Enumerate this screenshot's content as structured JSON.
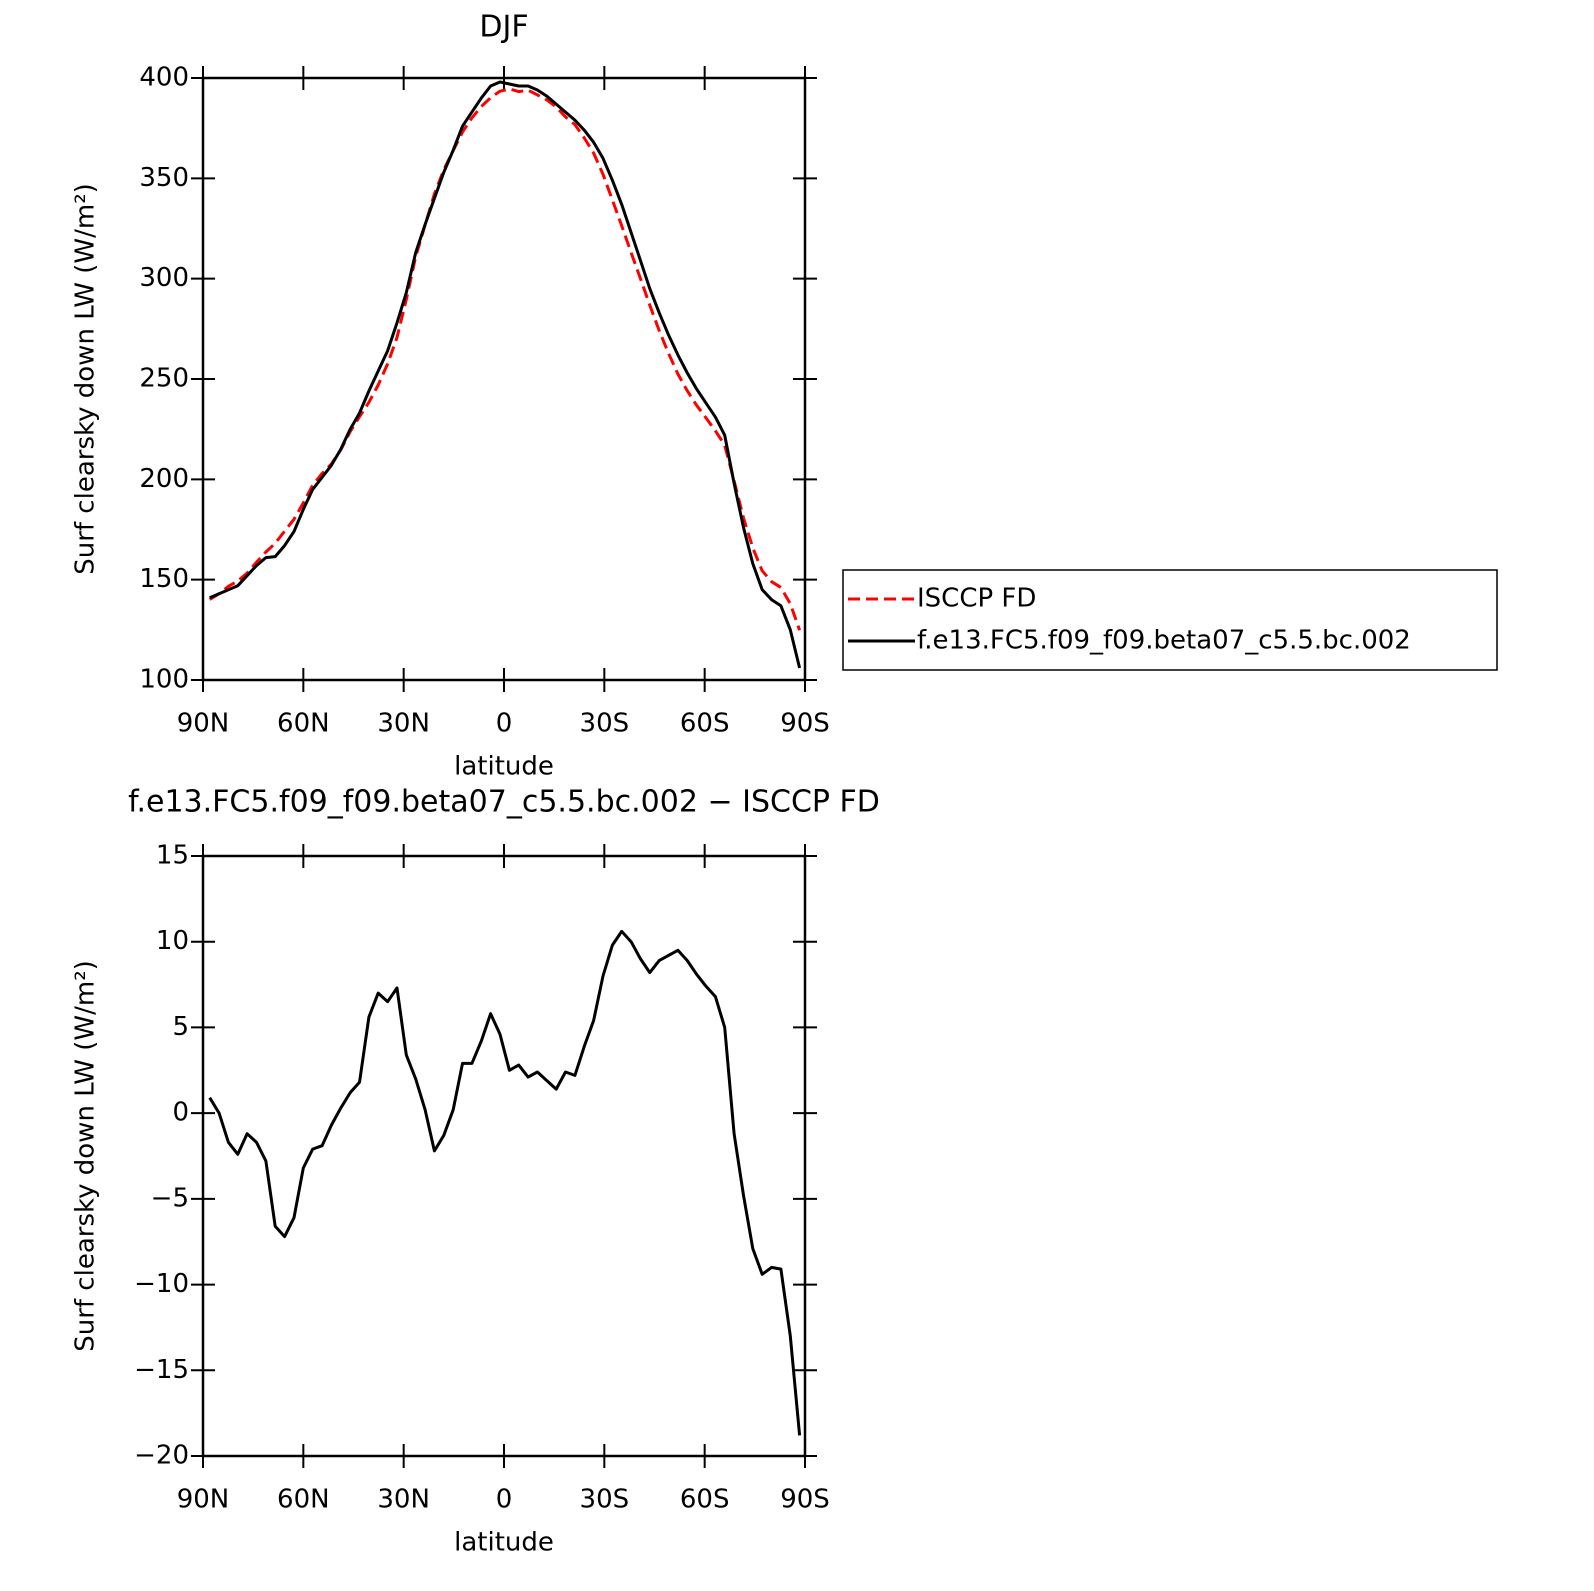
{
  "chart_data": [
    {
      "type": "line",
      "title": "DJF",
      "xlabel": "latitude",
      "ylabel": "Surf clearsky down LW (W/m²)",
      "x": [
        88,
        85.2,
        82.4,
        79.6,
        76.8,
        74,
        71.2,
        68.4,
        65.6,
        62.8,
        60,
        57.2,
        54.4,
        51.6,
        48.8,
        46,
        43.2,
        40.4,
        37.6,
        34.8,
        32,
        29.2,
        26.4,
        23.6,
        20.8,
        18,
        15.2,
        12.4,
        9.6,
        6.8,
        4,
        1.2,
        -1.6,
        -4.4,
        -7.2,
        -10,
        -12.8,
        -15.6,
        -18.4,
        -21.2,
        -24,
        -26.8,
        -29.6,
        -32.4,
        -35.2,
        -38,
        -40.8,
        -43.6,
        -46.4,
        -49.2,
        -52,
        -54.8,
        -57.6,
        -60.4,
        -63.2,
        -66,
        -68.8,
        -71.6,
        -74.4,
        -77.2,
        -80,
        -82.8,
        -85.6,
        -88.4
      ],
      "series": [
        {
          "name": "ISCCP FD",
          "color": "#ff0000",
          "dash": true,
          "values": [
            140.1,
            143,
            146.7,
            149.4,
            153.2,
            158.7,
            163.8,
            168.1,
            174.2,
            180.1,
            188.2,
            197.1,
            202.9,
            207.7,
            214.7,
            223.8,
            231.2,
            238.4,
            247,
            257.5,
            270.7,
            289.6,
            311,
            326.8,
            342.2,
            354.3,
            363.8,
            373.1,
            380.1,
            385.8,
            390.2,
            393.4,
            394.5,
            393.2,
            393.9,
            391.6,
            389.1,
            385.6,
            380.6,
            376.8,
            370.1,
            362.6,
            352,
            339.2,
            326.4,
            313,
            300,
            286.8,
            274.1,
            262.8,
            252.5,
            244.1,
            236.9,
            230.6,
            224.2,
            217,
            199.2,
            180.8,
            165.9,
            154.4,
            149,
            146.1,
            138,
            124.8
          ]
        },
        {
          "name": "f.e13.FC5.f09_f09.beta07_c5.5.bc.002",
          "color": "#000000",
          "dash": false,
          "values": [
            141,
            143,
            145,
            147,
            152,
            157,
            161,
            161.5,
            167,
            174,
            185,
            195,
            201,
            207,
            215,
            225,
            233,
            244,
            254,
            264,
            278,
            293,
            313,
            327,
            340,
            353,
            364,
            376,
            383,
            390,
            396,
            398,
            397,
            396,
            396,
            394,
            391,
            387,
            383,
            379,
            374,
            368,
            360,
            349,
            337,
            323,
            309,
            295,
            283,
            272,
            262,
            253,
            245,
            238,
            231,
            222,
            198,
            176,
            158,
            145,
            140,
            137,
            125,
            106
          ]
        }
      ],
      "xlim": [
        90,
        -90
      ],
      "xticks": [
        {
          "value": 90,
          "label": "90N"
        },
        {
          "value": 60,
          "label": "60N"
        },
        {
          "value": 30,
          "label": "30N"
        },
        0,
        {
          "value": -30,
          "label": "30S"
        },
        {
          "value": -60,
          "label": "60S"
        },
        {
          "value": -90,
          "label": "90S"
        }
      ],
      "ylim": [
        100,
        400
      ],
      "yticks": [
        100,
        150,
        200,
        250,
        300,
        350,
        400
      ],
      "legend": "right"
    },
    {
      "type": "line",
      "title": "f.e13.FC5.f09_f09.beta07_c5.5.bc.002 − ISCCP FD",
      "xlabel": "latitude",
      "ylabel": "Surf clearsky down LW (W/m²)",
      "x": [
        88,
        85.2,
        82.4,
        79.6,
        76.8,
        74,
        71.2,
        68.4,
        65.6,
        62.8,
        60,
        57.2,
        54.4,
        51.6,
        48.8,
        46,
        43.2,
        40.4,
        37.6,
        34.8,
        32,
        29.2,
        26.4,
        23.6,
        20.8,
        18,
        15.2,
        12.4,
        9.6,
        6.8,
        4,
        1.2,
        -1.6,
        -4.4,
        -7.2,
        -10,
        -12.8,
        -15.6,
        -18.4,
        -21.2,
        -24,
        -26.8,
        -29.6,
        -32.4,
        -35.2,
        -38,
        -40.8,
        -43.6,
        -46.4,
        -49.2,
        -52,
        -54.8,
        -57.6,
        -60.4,
        -63.2,
        -66,
        -68.8,
        -71.6,
        -74.4,
        -77.2,
        -80,
        -82.8,
        -85.6,
        -88.4
      ],
      "values": [
        0.9,
        0,
        -1.7,
        -2.4,
        -1.2,
        -1.7,
        -2.8,
        -6.6,
        -7.2,
        -6.1,
        -3.2,
        -2.1,
        -1.9,
        -0.7,
        0.3,
        1.2,
        1.8,
        5.6,
        7.0,
        6.5,
        7.3,
        3.4,
        2.0,
        0.2,
        -2.2,
        -1.3,
        0.2,
        2.9,
        2.9,
        4.2,
        5.8,
        4.6,
        2.5,
        2.8,
        2.1,
        2.4,
        1.9,
        1.4,
        2.4,
        2.2,
        3.9,
        5.4,
        8.0,
        9.8,
        10.6,
        10.0,
        9.0,
        8.2,
        8.9,
        9.2,
        9.5,
        8.9,
        8.1,
        7.4,
        6.8,
        5.0,
        -1.2,
        -4.8,
        -7.9,
        -9.4,
        -9.0,
        -9.1,
        -13.0,
        -18.8
      ],
      "color": "#000000",
      "xlim": [
        90,
        -90
      ],
      "xticks": [
        {
          "value": 90,
          "label": "90N"
        },
        {
          "value": 60,
          "label": "60N"
        },
        {
          "value": 30,
          "label": "30N"
        },
        0,
        {
          "value": -30,
          "label": "30S"
        },
        {
          "value": -60,
          "label": "60S"
        },
        {
          "value": -90,
          "label": "90S"
        }
      ],
      "ylim": [
        -20,
        15
      ],
      "yticks": [
        {
          "value": -20,
          "label": "−20"
        },
        {
          "value": -15,
          "label": "−15"
        },
        {
          "value": -10,
          "label": "−10"
        },
        {
          "value": -5,
          "label": "−5"
        },
        0,
        5,
        10,
        15
      ]
    }
  ]
}
